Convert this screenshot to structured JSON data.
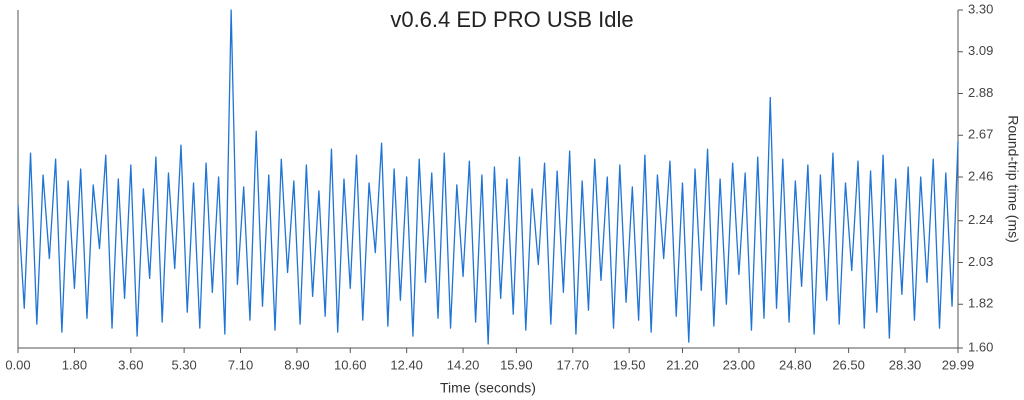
{
  "chart_data": {
    "type": "line",
    "title": "v0.6.4 ED PRO USB Idle",
    "x_label": "Time (seconds)",
    "y_label": "Round-trip time (ms)",
    "x": [
      0,
      0.2,
      0.4,
      0.6,
      0.8,
      1,
      1.2,
      1.4,
      1.6,
      1.8,
      2,
      2.2,
      2.4,
      2.6,
      2.8,
      3,
      3.2,
      3.4,
      3.6,
      3.8,
      4,
      4.2,
      4.4,
      4.6,
      4.8,
      5,
      5.2,
      5.4,
      5.6,
      5.8,
      6,
      6.2,
      6.4,
      6.6,
      6.8,
      7,
      7.2,
      7.4,
      7.6,
      7.8,
      8,
      8.2,
      8.4,
      8.6,
      8.8,
      9,
      9.2,
      9.4,
      9.6,
      9.8,
      10,
      10.2,
      10.4,
      10.6,
      10.8,
      11,
      11.2,
      11.4,
      11.6,
      11.8,
      12,
      12.2,
      12.4,
      12.6,
      12.8,
      13,
      13.2,
      13.4,
      13.6,
      13.8,
      14,
      14.2,
      14.4,
      14.6,
      14.8,
      15,
      15.2,
      15.4,
      15.6,
      15.8,
      16,
      16.2,
      16.4,
      16.6,
      16.8,
      17,
      17.2,
      17.4,
      17.6,
      17.8,
      18,
      18.2,
      18.4,
      18.6,
      18.8,
      19,
      19.2,
      19.4,
      19.6,
      19.8,
      20,
      20.2,
      20.4,
      20.6,
      20.8,
      21,
      21.2,
      21.4,
      21.6,
      21.8,
      22,
      22.2,
      22.4,
      22.6,
      22.8,
      23,
      23.2,
      23.4,
      23.6,
      23.8,
      24,
      24.2,
      24.4,
      24.6,
      24.8,
      25,
      25.2,
      25.4,
      25.6,
      25.8,
      26,
      26.2,
      26.4,
      26.6,
      26.8,
      27,
      27.2,
      27.4,
      27.6,
      27.8,
      28,
      28.2,
      28.4,
      28.6,
      28.8,
      29,
      29.2,
      29.4,
      29.6,
      29.8,
      29.99
    ],
    "series": [
      {
        "name": "Round-trip time",
        "color": "#1f74d6",
        "values": [
          2.32,
          1.8,
          2.58,
          1.72,
          2.47,
          2.05,
          2.55,
          1.68,
          2.44,
          1.9,
          2.5,
          1.75,
          2.42,
          2.1,
          2.57,
          1.7,
          2.45,
          1.85,
          2.52,
          1.66,
          2.4,
          1.95,
          2.56,
          1.73,
          2.48,
          2.0,
          2.62,
          1.78,
          2.43,
          1.7,
          2.53,
          1.88,
          2.46,
          1.67,
          3.3,
          1.92,
          2.41,
          1.74,
          2.69,
          1.81,
          2.47,
          1.69,
          2.55,
          1.98,
          2.44,
          1.72,
          2.52,
          1.86,
          2.39,
          1.76,
          2.6,
          1.68,
          2.45,
          1.9,
          2.57,
          1.74,
          2.43,
          2.08,
          2.63,
          1.71,
          2.5,
          1.84,
          2.46,
          1.66,
          2.55,
          1.93,
          2.48,
          1.75,
          2.58,
          1.7,
          2.42,
          1.96,
          2.54,
          1.73,
          2.47,
          1.62,
          2.51,
          1.85,
          2.45,
          1.77,
          2.56,
          1.69,
          2.4,
          2.02,
          2.53,
          1.72,
          2.49,
          1.88,
          2.59,
          1.67,
          2.44,
          1.79,
          2.55,
          1.94,
          2.46,
          1.7,
          2.52,
          1.83,
          2.41,
          1.74,
          2.57,
          1.68,
          2.47,
          2.05,
          2.54,
          1.76,
          2.43,
          1.63,
          2.5,
          1.89,
          2.6,
          1.71,
          2.45,
          1.82,
          2.53,
          1.97,
          2.48,
          1.69,
          2.56,
          1.75,
          2.86,
          1.8,
          2.55,
          1.73,
          2.44,
          1.91,
          2.52,
          1.67,
          2.47,
          1.84,
          2.58,
          1.72,
          2.43,
          1.99,
          2.54,
          1.7,
          2.49,
          1.78,
          2.57,
          1.65,
          2.45,
          1.87,
          2.51,
          1.74,
          2.46,
          1.93,
          2.55,
          1.7,
          2.48,
          1.81,
          2.64
        ]
      }
    ],
    "xlim": [
      0,
      29.99
    ],
    "xticks": [
      {
        "value": 0,
        "label": "0.00"
      },
      {
        "value": 1.8,
        "label": "1.80"
      },
      {
        "value": 3.6,
        "label": "3.60"
      },
      {
        "value": 5.3,
        "label": "5.30"
      },
      {
        "value": 7.1,
        "label": "7.10"
      },
      {
        "value": 8.9,
        "label": "8.90"
      },
      {
        "value": 10.6,
        "label": "10.60"
      },
      {
        "value": 12.4,
        "label": "12.40"
      },
      {
        "value": 14.2,
        "label": "14.20"
      },
      {
        "value": 15.9,
        "label": "15.90"
      },
      {
        "value": 17.7,
        "label": "17.70"
      },
      {
        "value": 19.5,
        "label": "19.50"
      },
      {
        "value": 21.2,
        "label": "21.20"
      },
      {
        "value": 23,
        "label": "23.00"
      },
      {
        "value": 24.8,
        "label": "24.80"
      },
      {
        "value": 26.5,
        "label": "26.50"
      },
      {
        "value": 28.3,
        "label": "28.30"
      },
      29.99
    ],
    "ylim": [
      1.6,
      3.3
    ],
    "yticks": [
      {
        "value": 1.6,
        "label": "1.60"
      },
      1.82,
      2.03,
      2.24,
      2.46,
      2.67,
      2.88,
      3.09,
      {
        "value": 3.3,
        "label": "3.30"
      }
    ],
    "grid": false
  }
}
